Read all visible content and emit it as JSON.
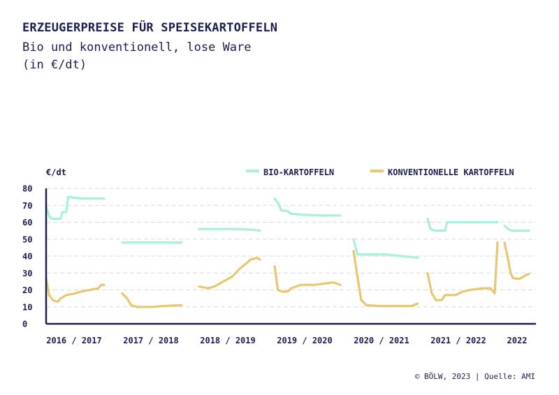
{
  "header": {
    "title": "ERZEUGERPREISE FÜR SPEISEKARTOFFELN",
    "subtitle_line1": "Bio und konventionell, lose Ware",
    "subtitle_line2": "(in €/dt)"
  },
  "footer": {
    "source": "© BÖLW, 2023 | Quelle: AMI"
  },
  "colors": {
    "bio": "#a8f0de",
    "conv": "#e8c76e",
    "axis": "#1d1d55",
    "grid": "#d9d9d9"
  },
  "chart_data": {
    "type": "line",
    "ylabel": "€/dt",
    "ylim": [
      0,
      80
    ],
    "yticks": [
      "0",
      "10",
      "20",
      "30",
      "40",
      "50",
      "60",
      "70",
      "80"
    ],
    "grid": true,
    "legend_position": "top-right",
    "categories": [
      "2016 / 2017",
      "2017 / 2018",
      "2018 / 2019",
      "2019 / 2020",
      "2020 / 2021",
      "2021 / 2022",
      "2022"
    ],
    "series": [
      {
        "name": "BIO-KARTOFFELN",
        "color": "#a8f0de",
        "segments": [
          [
            [
              0,
              69
            ],
            [
              0.06,
              63
            ],
            [
              0.12,
              62
            ],
            [
              0.25,
              62
            ],
            [
              0.28,
              66
            ],
            [
              0.35,
              66
            ],
            [
              0.38,
              75
            ],
            [
              0.6,
              74
            ],
            [
              0.76,
              74
            ],
            [
              1,
              74
            ]
          ],
          [
            [
              0,
              48
            ],
            [
              0.1,
              48
            ],
            [
              0.3,
              48
            ],
            [
              0.6,
              48
            ],
            [
              1,
              48
            ]
          ],
          [
            [
              0,
              56
            ],
            [
              0.3,
              56
            ],
            [
              0.6,
              56
            ],
            [
              0.9,
              55.5
            ],
            [
              1,
              55
            ]
          ],
          [
            [
              0,
              74
            ],
            [
              0.06,
              71
            ],
            [
              0.1,
              67
            ],
            [
              0.2,
              66.5
            ],
            [
              0.25,
              65
            ],
            [
              0.4,
              64.5
            ],
            [
              0.7,
              64
            ],
            [
              1,
              64
            ]
          ],
          [
            [
              0,
              50
            ],
            [
              0.06,
              41
            ],
            [
              0.2,
              41
            ],
            [
              0.5,
              41
            ],
            [
              0.75,
              40
            ],
            [
              1,
              39
            ]
          ],
          [
            [
              0,
              62
            ],
            [
              0.04,
              56
            ],
            [
              0.1,
              55
            ],
            [
              0.25,
              55
            ],
            [
              0.28,
              60
            ],
            [
              0.5,
              60
            ],
            [
              0.8,
              60
            ],
            [
              1,
              60
            ]
          ],
          [
            [
              0,
              58
            ],
            [
              0.15,
              56
            ],
            [
              0.3,
              55
            ],
            [
              0.6,
              55
            ],
            [
              1,
              55
            ]
          ]
        ]
      },
      {
        "name": "KONVENTIONELLE KARTOFFELN",
        "color": "#e8c76e",
        "segments": [
          [
            [
              0,
              27
            ],
            [
              0.05,
              17
            ],
            [
              0.12,
              14
            ],
            [
              0.2,
              13
            ],
            [
              0.25,
              15
            ],
            [
              0.35,
              17
            ],
            [
              0.5,
              18
            ],
            [
              0.6,
              19
            ],
            [
              0.75,
              20
            ],
            [
              0.9,
              21
            ],
            [
              0.95,
              23
            ],
            [
              1,
              23
            ]
          ],
          [
            [
              0,
              18
            ],
            [
              0.08,
              15
            ],
            [
              0.15,
              11
            ],
            [
              0.25,
              10
            ],
            [
              0.5,
              10
            ],
            [
              0.7,
              10.5
            ],
            [
              1,
              11
            ]
          ],
          [
            [
              0,
              22
            ],
            [
              0.15,
              21
            ],
            [
              0.25,
              22
            ],
            [
              0.35,
              24
            ],
            [
              0.45,
              26
            ],
            [
              0.55,
              28
            ],
            [
              0.65,
              32
            ],
            [
              0.75,
              35
            ],
            [
              0.85,
              38
            ],
            [
              0.95,
              39
            ],
            [
              1,
              38
            ]
          ],
          [
            [
              0,
              34
            ],
            [
              0.05,
              20
            ],
            [
              0.12,
              19
            ],
            [
              0.2,
              19
            ],
            [
              0.25,
              21
            ],
            [
              0.4,
              23
            ],
            [
              0.6,
              23
            ],
            [
              0.8,
              24
            ],
            [
              0.9,
              24.5
            ],
            [
              1,
              23
            ]
          ],
          [
            [
              0,
              43
            ],
            [
              0.06,
              28
            ],
            [
              0.12,
              14
            ],
            [
              0.2,
              11
            ],
            [
              0.4,
              10.5
            ],
            [
              0.7,
              10.5
            ],
            [
              0.9,
              10.5
            ],
            [
              1,
              12
            ]
          ],
          [
            [
              0,
              30
            ],
            [
              0.06,
              18
            ],
            [
              0.12,
              14
            ],
            [
              0.2,
              14
            ],
            [
              0.25,
              17
            ],
            [
              0.35,
              17
            ],
            [
              0.4,
              17
            ],
            [
              0.5,
              19
            ],
            [
              0.6,
              20
            ],
            [
              0.8,
              21
            ],
            [
              0.9,
              21
            ],
            [
              0.96,
              18
            ],
            [
              1,
              48
            ]
          ],
          [
            [
              0,
              48
            ],
            [
              0.12,
              40
            ],
            [
              0.25,
              30
            ],
            [
              0.35,
              27
            ],
            [
              0.6,
              26.5
            ],
            [
              0.8,
              28
            ],
            [
              0.9,
              29
            ],
            [
              1,
              29.5
            ]
          ]
        ]
      }
    ]
  }
}
